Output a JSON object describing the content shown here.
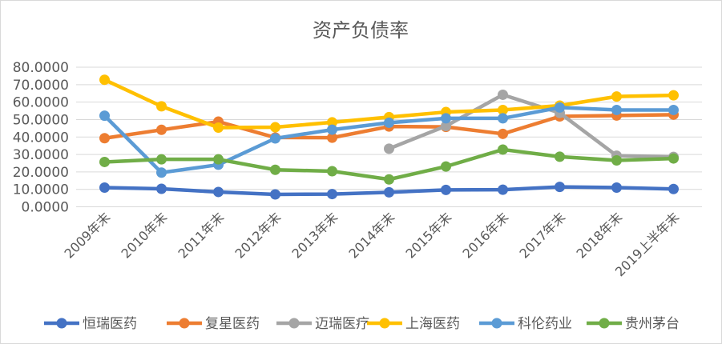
{
  "chart_data": {
    "type": "line",
    "title": "资产负债率",
    "categories": [
      "2009年末",
      "2010年末",
      "2011年末",
      "2012年末",
      "2013年末",
      "2014年末",
      "2015年末",
      "2016年末",
      "2017年末",
      "2018年末",
      "2019上半年末"
    ],
    "ylim": [
      0,
      80
    ],
    "yticks": [
      "0.0000",
      "10.0000",
      "20.0000",
      "30.0000",
      "40.0000",
      "50.0000",
      "60.0000",
      "70.0000",
      "80.0000"
    ],
    "grid": true,
    "legend_position": "bottom",
    "series": [
      {
        "name": "恒瑞医药",
        "color": "#4472c4",
        "values": [
          11.0,
          10.3,
          8.5,
          7.1,
          7.3,
          8.3,
          9.7,
          9.8,
          11.4,
          11.0,
          10.2
        ]
      },
      {
        "name": "复星医药",
        "color": "#ed7d31",
        "values": [
          39.3,
          44.1,
          48.8,
          39.7,
          39.6,
          46.0,
          45.8,
          41.8,
          51.8,
          52.3,
          52.8
        ]
      },
      {
        "name": "迈瑞医疗",
        "color": "#a5a5a5",
        "values": [
          null,
          null,
          null,
          null,
          null,
          33.3,
          46.3,
          64.2,
          53.8,
          29.3,
          28.6
        ]
      },
      {
        "name": "上海医药",
        "color": "#ffc000",
        "values": [
          72.8,
          57.6,
          45.4,
          45.6,
          48.4,
          51.4,
          54.3,
          55.5,
          58.0,
          63.2,
          63.9
        ]
      },
      {
        "name": "科伦药业",
        "color": "#5b9bd5",
        "values": [
          52.2,
          19.6,
          24.1,
          39.2,
          44.2,
          48.2,
          50.7,
          50.7,
          56.9,
          55.5,
          55.5
        ]
      },
      {
        "name": "贵州茅台",
        "color": "#70ad47",
        "values": [
          25.7,
          27.2,
          27.2,
          21.2,
          20.4,
          15.7,
          23.1,
          32.8,
          28.7,
          26.6,
          27.7
        ]
      }
    ]
  }
}
